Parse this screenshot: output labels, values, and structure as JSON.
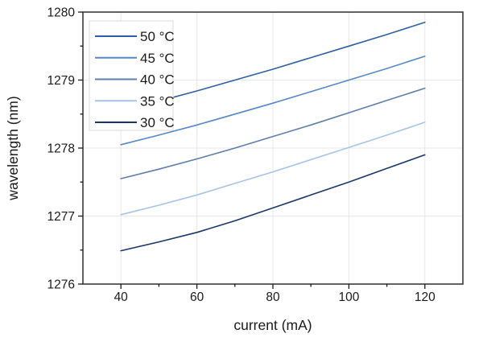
{
  "chart_data": {
    "type": "line",
    "title": "",
    "xlabel": "current (mA)",
    "ylabel": "wavelength (nm)",
    "xlim": [
      30,
      130
    ],
    "ylim": [
      1276,
      1280
    ],
    "x_major_ticks": [
      40,
      60,
      80,
      100,
      120
    ],
    "x_minor_ticks": [
      50,
      70,
      90,
      110
    ],
    "y_major_ticks": [
      1276,
      1277,
      1278,
      1279,
      1280
    ],
    "y_minor_ticks": [
      1276.5,
      1277.5,
      1278.5,
      1279.5
    ],
    "grid": true,
    "legend_position": "upper-left",
    "x": [
      40,
      50,
      60,
      70,
      80,
      90,
      100,
      110,
      120
    ],
    "series": [
      {
        "name": "50 °C",
        "color": "#2e5fa3",
        "values": [
          1278.55,
          1278.69,
          1278.84,
          1279.0,
          1279.16,
          1279.33,
          1279.5,
          1279.67,
          1279.85
        ]
      },
      {
        "name": "45 °C",
        "color": "#5687c8",
        "values": [
          1278.05,
          1278.19,
          1278.34,
          1278.5,
          1278.66,
          1278.83,
          1279.0,
          1279.17,
          1279.35
        ]
      },
      {
        "name": "40 °C",
        "color": "#5e7dac",
        "values": [
          1277.55,
          1277.69,
          1277.84,
          1278.0,
          1278.17,
          1278.34,
          1278.52,
          1278.7,
          1278.88
        ]
      },
      {
        "name": "35 °C",
        "color": "#a6c3e6",
        "values": [
          1277.02,
          1277.16,
          1277.31,
          1277.48,
          1277.65,
          1277.83,
          1278.01,
          1278.19,
          1278.38
        ]
      },
      {
        "name": "30 °C",
        "color": "#1a3668",
        "values": [
          1276.49,
          1276.62,
          1276.76,
          1276.93,
          1277.12,
          1277.31,
          1277.5,
          1277.7,
          1277.9
        ]
      }
    ]
  },
  "colors": {
    "background": "#ffffff",
    "frame": "#3a3a3a",
    "grid": "#e7e7e7",
    "tick": "#1a1a1a",
    "text": "#1a1a1a",
    "legend_border": "#d9d9d9",
    "legend_background": "#ffffff"
  }
}
